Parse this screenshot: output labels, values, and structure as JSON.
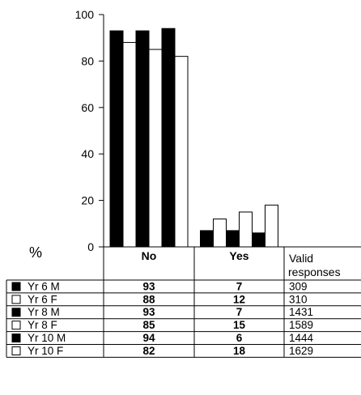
{
  "chart_data": {
    "type": "bar",
    "categories": [
      "No",
      "Yes"
    ],
    "series": [
      {
        "name": "Yr 6 M",
        "color": "#000000",
        "values": [
          93,
          7
        ]
      },
      {
        "name": "Yr 6 F",
        "color": "#ffffff",
        "values": [
          88,
          12
        ]
      },
      {
        "name": "Yr 8 M",
        "color": "#000000",
        "values": [
          93,
          7
        ]
      },
      {
        "name": "Yr 8 F",
        "color": "#ffffff",
        "values": [
          85,
          15
        ]
      },
      {
        "name": "Yr 10 M",
        "color": "#000000",
        "values": [
          94,
          6
        ]
      },
      {
        "name": "Yr 10 F",
        "color": "#ffffff",
        "values": [
          82,
          18
        ]
      }
    ],
    "ylabel": "%",
    "ylim": [
      0,
      100
    ],
    "yticks": [
      "100",
      "80",
      "60",
      "40",
      "20",
      "0"
    ],
    "valid_header": [
      "Valid",
      "responses"
    ],
    "valid_responses": [
      309,
      310,
      1431,
      1589,
      1444,
      1629
    ],
    "grid": false,
    "legend": "table-below"
  }
}
